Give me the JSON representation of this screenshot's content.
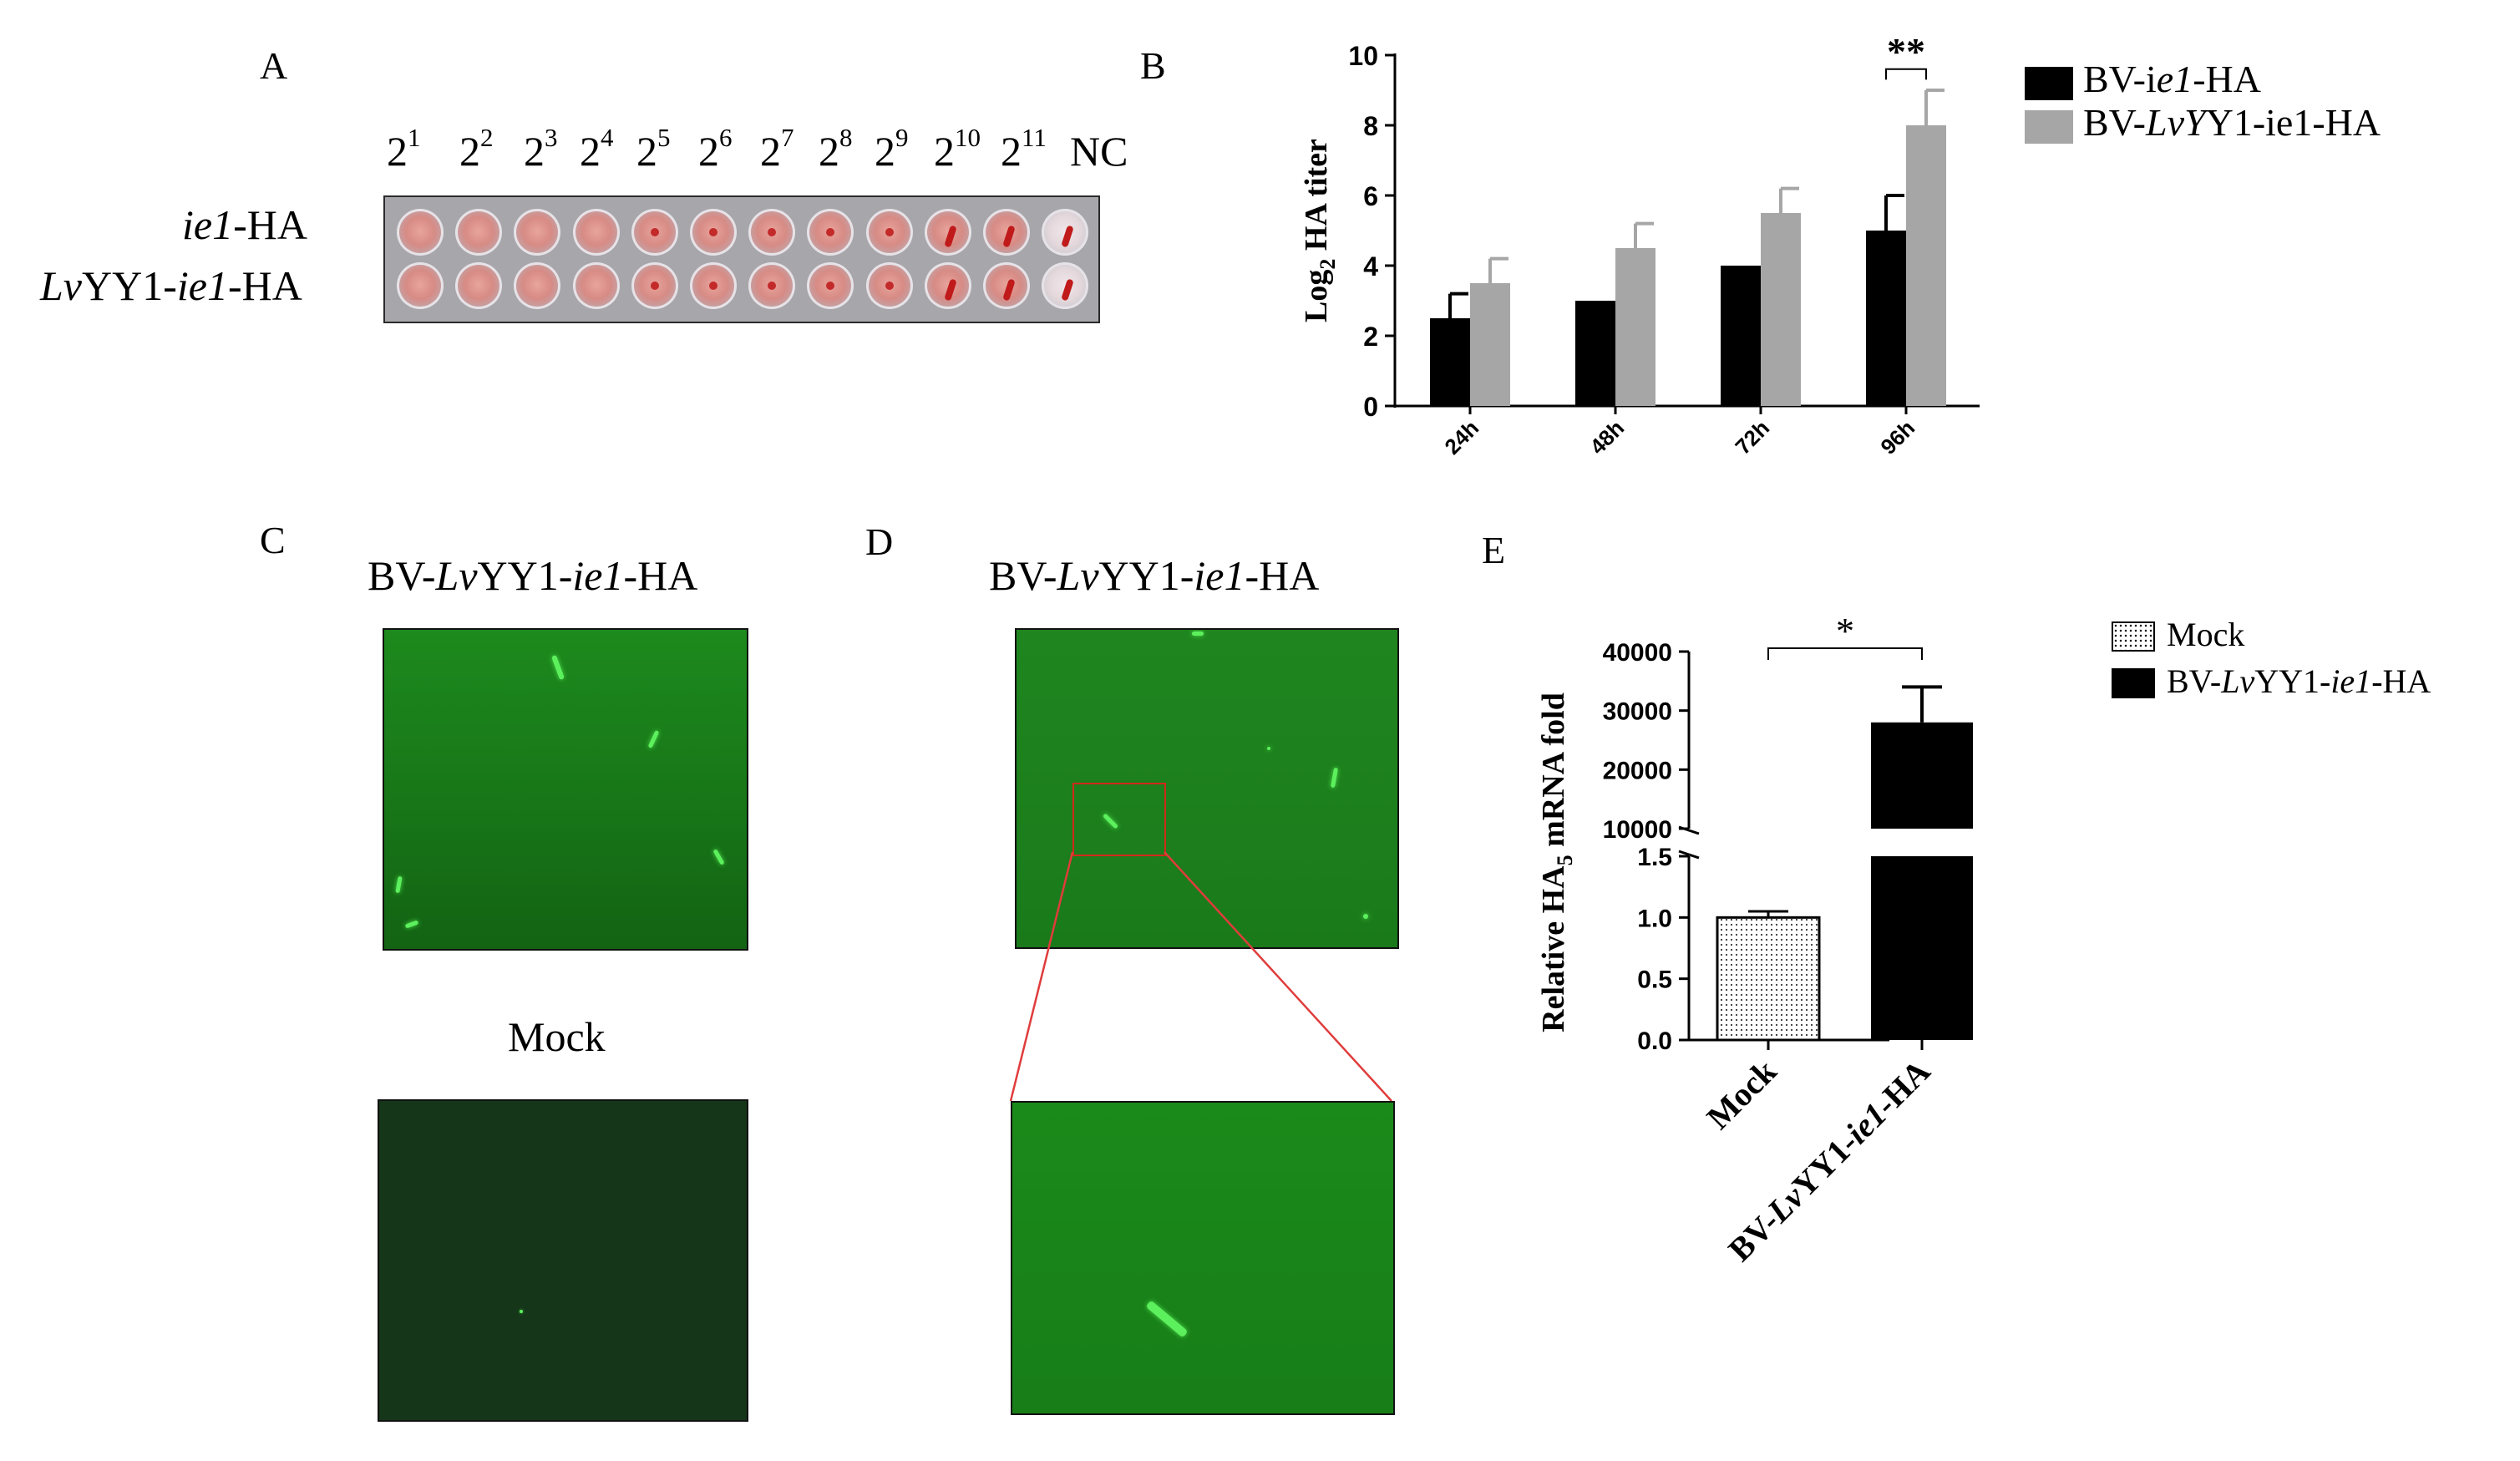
{
  "panels": {
    "A": "A",
    "B": "B",
    "C": "C",
    "D": "D",
    "E": "E"
  },
  "panelA": {
    "dilutions": [
      {
        "base": "2",
        "exp": "1"
      },
      {
        "base": "2",
        "exp": "2"
      },
      {
        "base": "2",
        "exp": "3"
      },
      {
        "base": "2",
        "exp": "4"
      },
      {
        "base": "2",
        "exp": "5"
      },
      {
        "base": "2",
        "exp": "6"
      },
      {
        "base": "2",
        "exp": "7"
      },
      {
        "base": "2",
        "exp": "8"
      },
      {
        "base": "2",
        "exp": "9"
      },
      {
        "base": "2",
        "exp": "10"
      },
      {
        "base": "2",
        "exp": "11"
      }
    ],
    "nc_label": "NC",
    "row1": {
      "italic": "ie1",
      "rest": "-HA"
    },
    "row2": {
      "italic1": "Lv",
      "mid": "YY1-",
      "italic2": "ie1",
      "rest": "-HA"
    }
  },
  "panelC": {
    "title_prefix": "BV-",
    "title_it1": "Lv",
    "title_mid": "YY1-",
    "title_it2": "ie1",
    "title_suffix": "-HA",
    "mock_label": "Mock"
  },
  "panelD": {
    "title_prefix": "BV-",
    "title_it1": "Lv",
    "title_mid": "YY1-",
    "title_it2": "ie1",
    "title_suffix": "-HA"
  },
  "legendB": [
    {
      "pre": "BV-i",
      "it": "e1",
      "post": "-HA",
      "color": "#000000"
    },
    {
      "pre": "BV-",
      "it": "LvY",
      "post": "Y1-ie1-HA",
      "color": "#a6a6a6"
    }
  ],
  "legendE": [
    {
      "pre": "Mock",
      "it": "",
      "mid": "",
      "it2": "",
      "post": "",
      "pattern": "dots"
    },
    {
      "pre": "BV-",
      "it": "Lv",
      "mid": "YY1-",
      "it2": "ie1",
      "post": "-HA",
      "pattern": "solid"
    }
  ],
  "chart_data": [
    {
      "type": "bar",
      "panel": "B",
      "ylabel_pre": "Log",
      "ylabel_sub": "2",
      "ylabel_post": " HA titer",
      "ylim": [
        0,
        10
      ],
      "yticks": [
        "0",
        "2",
        "4",
        "6",
        "8",
        "10"
      ],
      "categories": [
        "24h",
        "48h",
        "72h",
        "96h"
      ],
      "series": [
        {
          "name": "BV-ie1-HA",
          "color": "#000000",
          "values": [
            2.5,
            3.0,
            4.0,
            5.0
          ],
          "errors": [
            0.7,
            0,
            0,
            1.0
          ]
        },
        {
          "name": "BV-LvYY1-ie1-HA",
          "color": "#a6a6a6",
          "values": [
            3.5,
            4.5,
            5.5,
            8.0
          ],
          "errors": [
            0.7,
            0.7,
            0.7,
            1.0
          ]
        }
      ],
      "significance": {
        "label": "**",
        "category": "96h"
      }
    },
    {
      "type": "bar",
      "panel": "E",
      "ylabel_pre": "Relative HA",
      "ylabel_sub": "5",
      "ylabel_post": " mRNA fold",
      "broken_axis": true,
      "lower_range": [
        0,
        1.5
      ],
      "upper_range": [
        10000,
        40000
      ],
      "lower_ticks": [
        "0.0",
        "0.5",
        "1.0",
        "1.5"
      ],
      "upper_ticks": [
        "10000",
        "20000",
        "30000",
        "40000"
      ],
      "categories": [
        "Mock",
        "BV-LvYY1-ie1-HA"
      ],
      "xlabels": [
        {
          "pre": "Mock",
          "it": "",
          "mid": "",
          "it2": "",
          "post": ""
        },
        {
          "pre": "BV-",
          "it": "Lv",
          "mid": "YY1-",
          "it2": "ie1",
          "post": "-HA"
        }
      ],
      "values": [
        1.0,
        28000
      ],
      "errors": [
        0.05,
        6000
      ],
      "significance": {
        "label": "*"
      }
    }
  ]
}
